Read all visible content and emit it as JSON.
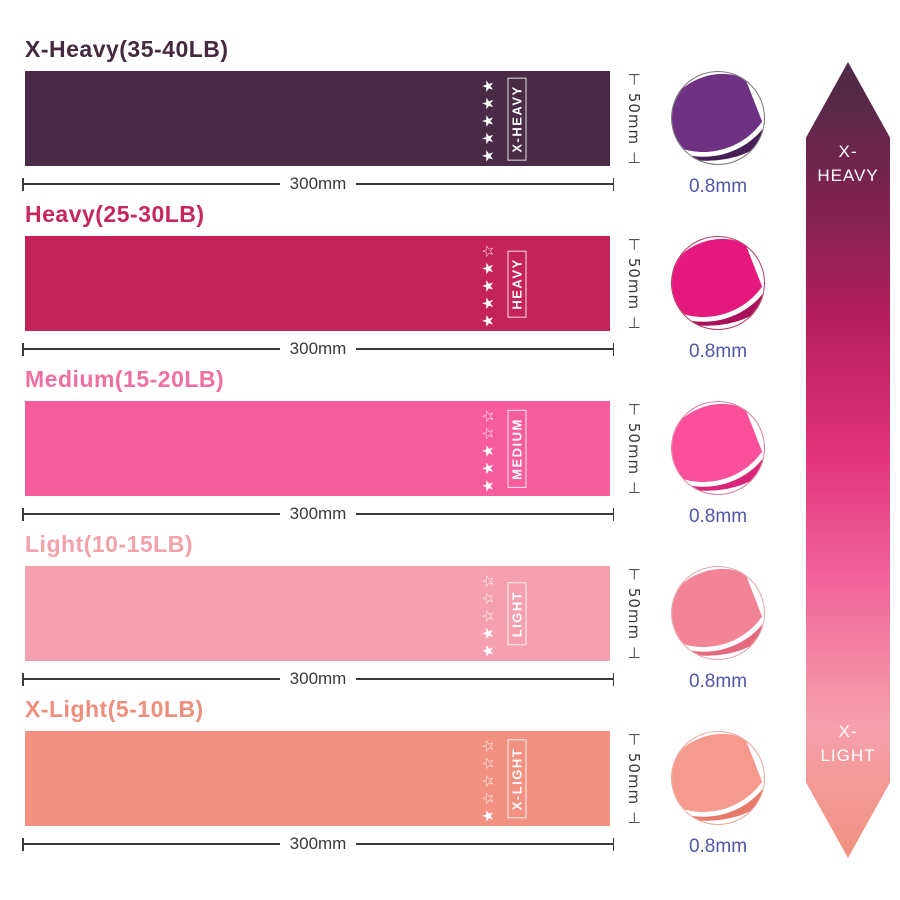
{
  "bands": [
    {
      "title": "X-Heavy(35-40LB)",
      "title_color": "#44293f",
      "color": "#4a2b47",
      "label": "X-HEAVY",
      "stars": "★★★★★",
      "stars_filled": 5,
      "width_label": "300mm",
      "height_label": "50mm",
      "thickness_label": "0.8mm",
      "thumb_main": "#6f3181",
      "thumb_dark": "#471e56",
      "thumb_border": "#777777"
    },
    {
      "title": "Heavy(25-30LB)",
      "title_color": "#c5275c",
      "color": "#c32359",
      "label": "HEAVY",
      "stars": "★★★★☆",
      "stars_filled": 4,
      "width_label": "300mm",
      "height_label": "50mm",
      "thickness_label": "0.8mm",
      "thumb_main": "#e5187d",
      "thumb_dark": "#a81059",
      "thumb_border": "#b43b5e"
    },
    {
      "title": "Medium(15-20LB)",
      "title_color": "#ee6fa3",
      "color": "#f75d9d",
      "label": "MEDIUM",
      "stars": "★★★☆☆",
      "stars_filled": 3,
      "width_label": "300mm",
      "height_label": "50mm",
      "thickness_label": "0.8mm",
      "thumb_main": "#fa4f9b",
      "thumb_dark": "#d92577",
      "thumb_border": "#d9809f"
    },
    {
      "title": "Light(10-15LB)",
      "title_color": "#f1a2ab",
      "color": "#f4a0ae",
      "label": "LIGHT",
      "stars": "★★☆☆☆",
      "stars_filled": 2,
      "width_label": "300mm",
      "height_label": "50mm",
      "thickness_label": "0.8mm",
      "thumb_main": "#f28496",
      "thumb_dark": "#e4687e",
      "thumb_border": "#e2a7ad"
    },
    {
      "title": "X-Light(5-10LB)",
      "title_color": "#ee8e7c",
      "color": "#f29181",
      "label": "X-LIGHT",
      "stars": "★☆☆☆☆",
      "stars_filled": 1,
      "width_label": "300mm",
      "height_label": "50mm",
      "thickness_label": "0.8mm",
      "thumb_main": "#f59a8c",
      "thumb_dark": "#e87a6c",
      "thumb_border": "#eaa89c"
    }
  ],
  "icons": {
    "dim_tick_start": "⊢",
    "dim_tick_end": "⊣"
  },
  "arrow": {
    "top_label": "X-HEAVY",
    "bottom_label": "X-LIGHT",
    "gradient": [
      "#4a2b47",
      "#7c2350",
      "#b81e5c",
      "#e3357d",
      "#f2699c",
      "#f5a0ac",
      "#f2917f"
    ]
  },
  "dim_color": "#3a3a3a",
  "thickness_color": "#5156a8"
}
